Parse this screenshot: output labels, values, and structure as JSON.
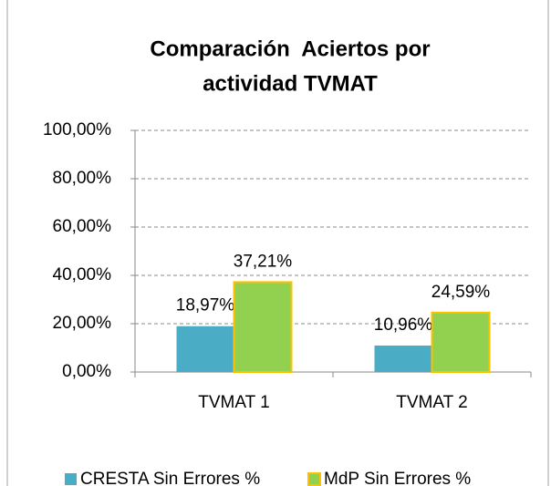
{
  "chart_data": {
    "type": "bar",
    "title": [
      "Comparación  Aciertos por",
      "actividad TVMAT"
    ],
    "categories": [
      "TVMAT 1",
      "TVMAT 2"
    ],
    "series": [
      {
        "name": "CRESTA Sin Errores %",
        "color": "#4bacc6",
        "values": [
          18.97,
          10.96
        ],
        "value_labels": [
          "18,97%",
          "10,96%"
        ]
      },
      {
        "name": "MdP Sin Errores %",
        "color": "#92d050",
        "edge_color": "#ffc000",
        "values": [
          37.21,
          24.59
        ],
        "value_labels": [
          "37,21%",
          "24,59%"
        ]
      }
    ],
    "ylim": [
      0,
      100
    ],
    "yticks": [
      {
        "value": 0,
        "label": "0,00%"
      },
      {
        "value": 20,
        "label": "20,00%"
      },
      {
        "value": 40,
        "label": "40,00%"
      },
      {
        "value": 60,
        "label": "60,00%"
      },
      {
        "value": 80,
        "label": "80,00%"
      },
      {
        "value": 100,
        "label": "100,00%"
      }
    ],
    "grid": true,
    "legend": "bottom"
  }
}
